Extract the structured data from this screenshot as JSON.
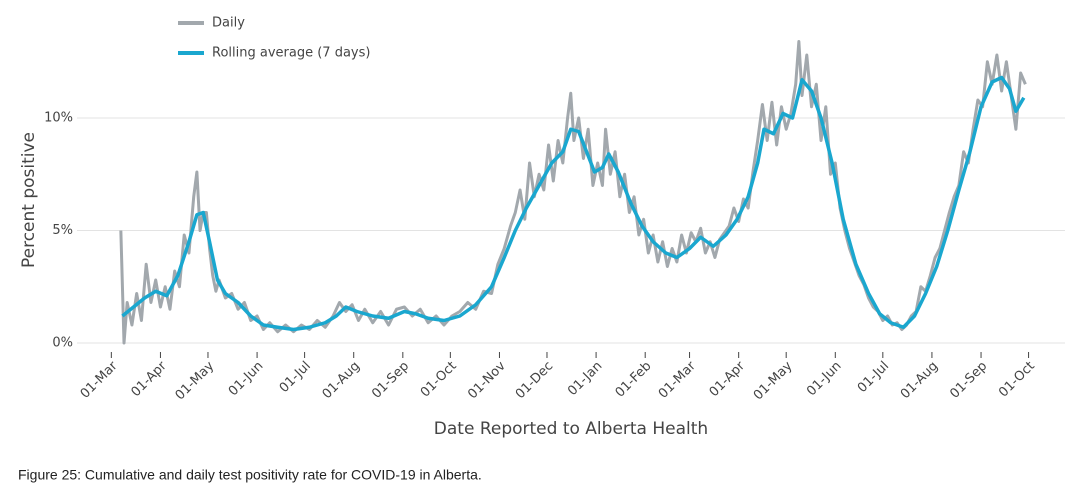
{
  "chart_data": {
    "type": "line",
    "xlabel": "Date Reported to Alberta Health",
    "ylabel": "Percent positive",
    "caption": "Figure 25: Cumulative and daily test positivity rate for COVID-19 in Alberta.",
    "xlim": [
      -4,
      602
    ],
    "ylim": [
      -0.4,
      14.5
    ],
    "xticks": [
      {
        "value": 0,
        "label": "01-Mar"
      },
      {
        "value": 31,
        "label": "01-Apr"
      },
      {
        "value": 61,
        "label": "01-May"
      },
      {
        "value": 92,
        "label": "01-Jun"
      },
      {
        "value": 122,
        "label": "01-Jul"
      },
      {
        "value": 153,
        "label": "01-Aug"
      },
      {
        "value": 184,
        "label": "01-Sep"
      },
      {
        "value": 214,
        "label": "01-Oct"
      },
      {
        "value": 245,
        "label": "01-Nov"
      },
      {
        "value": 275,
        "label": "01-Dec"
      },
      {
        "value": 306,
        "label": "01-Jan"
      },
      {
        "value": 337,
        "label": "01-Feb"
      },
      {
        "value": 365,
        "label": "01-Mar"
      },
      {
        "value": 396,
        "label": "01-Apr"
      },
      {
        "value": 426,
        "label": "01-May"
      },
      {
        "value": 457,
        "label": "01-Jun"
      },
      {
        "value": 487,
        "label": "01-Jul"
      },
      {
        "value": 518,
        "label": "01-Aug"
      },
      {
        "value": 549,
        "label": "01-Sep"
      },
      {
        "value": 579,
        "label": "01-Oct"
      }
    ],
    "yticks": [
      {
        "value": 0,
        "label": "0%"
      },
      {
        "value": 5,
        "label": "5%"
      },
      {
        "value": 10,
        "label": "10%"
      }
    ],
    "grid": true,
    "series": [
      {
        "name": "Daily",
        "color": "#a2a8ad",
        "x": [
          6,
          8,
          10,
          13,
          16,
          19,
          22,
          25,
          28,
          31,
          34,
          37,
          40,
          43,
          46,
          49,
          52,
          54,
          56,
          58,
          60,
          62,
          64,
          66,
          68,
          72,
          76,
          80,
          84,
          88,
          92,
          96,
          100,
          105,
          110,
          115,
          120,
          125,
          130,
          135,
          140,
          144,
          148,
          152,
          156,
          160,
          165,
          170,
          175,
          180,
          185,
          190,
          195,
          200,
          205,
          210,
          215,
          220,
          225,
          230,
          235,
          240,
          244,
          248,
          252,
          255,
          258,
          261,
          264,
          267,
          270,
          273,
          276,
          279,
          282,
          285,
          288,
          290,
          292,
          295,
          298,
          301,
          304,
          307,
          310,
          312,
          315,
          318,
          321,
          324,
          327,
          330,
          333,
          336,
          339,
          342,
          345,
          348,
          351,
          354,
          357,
          360,
          363,
          366,
          369,
          372,
          375,
          378,
          381,
          384,
          387,
          390,
          393,
          396,
          399,
          402,
          405,
          408,
          411,
          414,
          417,
          420,
          423,
          426,
          429,
          432,
          434,
          436,
          439,
          442,
          445,
          448,
          451,
          454,
          457,
          460,
          463,
          466,
          469,
          472,
          475,
          478,
          481,
          484,
          487,
          490,
          493,
          496,
          499,
          502,
          505,
          508,
          511,
          514,
          517,
          520,
          523,
          526,
          529,
          532,
          535,
          538,
          541,
          544,
          547,
          550,
          553,
          556,
          559,
          562,
          565,
          568,
          571,
          574,
          577
        ],
        "values": [
          5.0,
          0.0,
          1.8,
          0.8,
          2.2,
          1.0,
          3.5,
          1.8,
          2.8,
          1.6,
          2.5,
          1.5,
          3.2,
          2.5,
          4.8,
          4.0,
          6.5,
          7.6,
          5.0,
          5.8,
          5.8,
          4.2,
          3.0,
          2.3,
          2.8,
          2.0,
          2.2,
          1.5,
          1.8,
          1.0,
          1.2,
          0.6,
          0.9,
          0.5,
          0.8,
          0.5,
          0.8,
          0.6,
          1.0,
          0.7,
          1.2,
          1.8,
          1.4,
          1.7,
          1.0,
          1.5,
          0.9,
          1.4,
          0.8,
          1.5,
          1.6,
          1.2,
          1.5,
          0.9,
          1.2,
          0.8,
          1.2,
          1.4,
          1.8,
          1.5,
          2.3,
          2.2,
          3.5,
          4.2,
          5.2,
          5.8,
          6.8,
          5.5,
          8.0,
          6.5,
          7.5,
          6.8,
          8.8,
          7.2,
          9.0,
          8.0,
          10.0,
          11.1,
          9.0,
          10.0,
          8.2,
          9.5,
          7.0,
          8.0,
          7.0,
          9.5,
          7.5,
          8.5,
          6.5,
          7.5,
          5.8,
          6.5,
          4.8,
          5.5,
          4.0,
          4.8,
          3.6,
          4.5,
          3.4,
          4.2,
          3.6,
          4.8,
          4.0,
          4.9,
          4.5,
          5.1,
          4.0,
          4.5,
          3.8,
          4.6,
          4.9,
          5.2,
          6.0,
          5.4,
          6.4,
          6.0,
          7.6,
          9.0,
          10.6,
          9.0,
          10.7,
          8.8,
          10.5,
          9.5,
          10.2,
          11.5,
          13.4,
          11.0,
          12.8,
          10.5,
          11.5,
          9.0,
          10.5,
          7.5,
          8.0,
          6.0,
          5.0,
          4.2,
          3.6,
          3.0,
          2.6,
          2.0,
          1.6,
          1.4,
          1.0,
          1.2,
          0.8,
          0.9,
          0.6,
          0.8,
          1.2,
          1.4,
          2.5,
          2.3,
          3.0,
          3.8,
          4.2,
          5.0,
          5.8,
          6.5,
          7.0,
          8.5,
          8.0,
          9.5,
          10.8,
          10.5,
          12.5,
          11.5,
          12.8,
          11.2,
          12.5,
          11.0,
          9.5,
          12.0,
          11.5
        ]
      },
      {
        "name": "Rolling average (7 days)",
        "color": "#1aa7cf",
        "x": [
          7,
          14,
          21,
          28,
          35,
          42,
          49,
          54,
          58,
          62,
          67,
          72,
          80,
          88,
          96,
          105,
          115,
          125,
          135,
          142,
          148,
          155,
          165,
          175,
          185,
          192,
          200,
          210,
          220,
          230,
          240,
          248,
          255,
          262,
          270,
          278,
          285,
          290,
          295,
          300,
          305,
          310,
          314,
          320,
          328,
          335,
          342,
          350,
          357,
          365,
          372,
          380,
          388,
          395,
          402,
          408,
          412,
          418,
          424,
          430,
          436,
          442,
          448,
          455,
          462,
          470,
          478,
          485,
          492,
          500,
          507,
          514,
          521,
          528,
          535,
          542,
          549,
          556,
          562,
          567,
          571,
          576
        ],
        "values": [
          1.2,
          1.6,
          2.0,
          2.3,
          2.1,
          3.0,
          4.5,
          5.7,
          5.8,
          4.5,
          2.8,
          2.2,
          1.8,
          1.2,
          0.8,
          0.7,
          0.6,
          0.7,
          0.9,
          1.2,
          1.6,
          1.4,
          1.2,
          1.1,
          1.4,
          1.3,
          1.1,
          1.0,
          1.2,
          1.7,
          2.5,
          3.8,
          5.0,
          6.0,
          7.0,
          8.0,
          8.5,
          9.5,
          9.4,
          8.5,
          7.6,
          7.8,
          8.4,
          7.6,
          6.2,
          5.2,
          4.5,
          4.0,
          3.8,
          4.2,
          4.7,
          4.3,
          4.8,
          5.5,
          6.5,
          8.0,
          9.5,
          9.3,
          10.2,
          10.0,
          11.7,
          11.2,
          10.0,
          8.0,
          5.5,
          3.5,
          2.2,
          1.3,
          0.9,
          0.7,
          1.2,
          2.2,
          3.4,
          5.0,
          6.8,
          8.5,
          10.5,
          11.6,
          11.8,
          11.3,
          10.3,
          10.9
        ]
      }
    ]
  }
}
